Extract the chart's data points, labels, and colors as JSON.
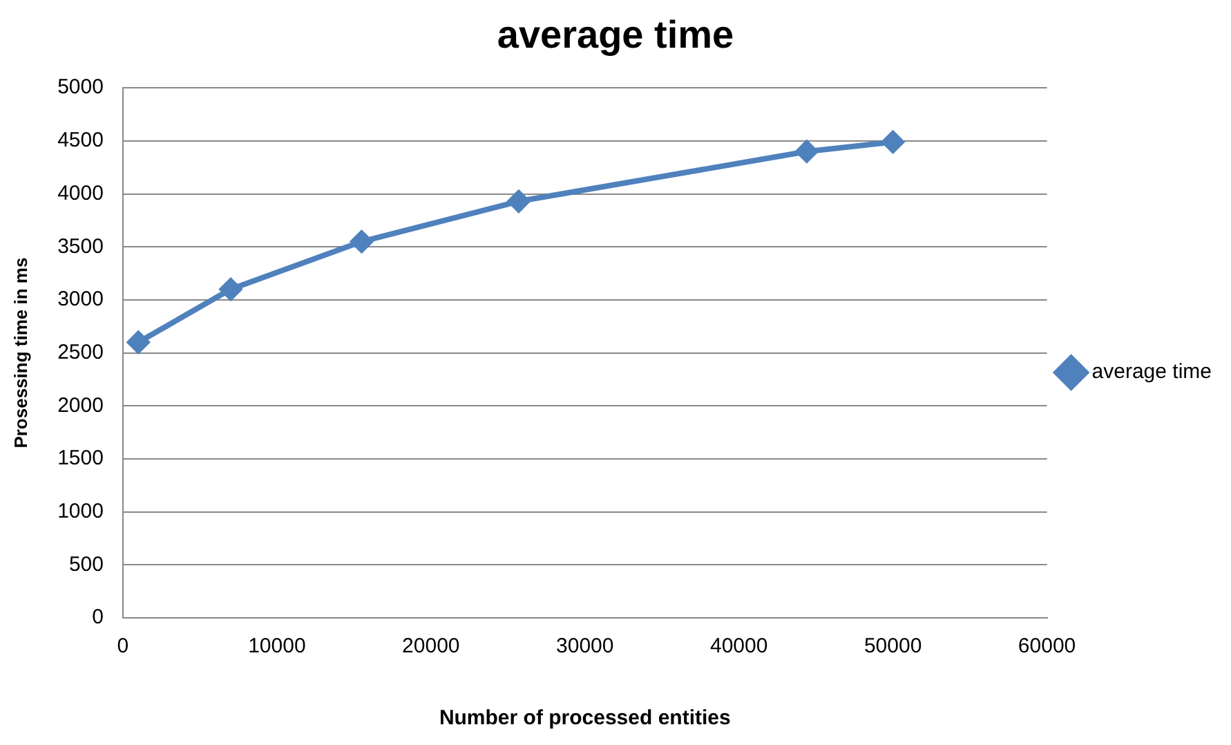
{
  "chart_data": {
    "type": "line",
    "title": "average time",
    "xlabel": "Number of processed entities",
    "ylabel": "Prosessing time in ms",
    "x": [
      1000,
      7000,
      15500,
      25700,
      44400,
      50000
    ],
    "series": [
      {
        "name": "average time",
        "color": "#4f81bd",
        "values": [
          2600,
          3100,
          3550,
          3930,
          4400,
          4490
        ]
      }
    ],
    "xlim": [
      0,
      60000
    ],
    "xticks": [
      0,
      10000,
      20000,
      30000,
      40000,
      50000,
      60000
    ],
    "ylim": [
      0,
      5000
    ],
    "yticks": [
      0,
      500,
      1000,
      1500,
      2000,
      2500,
      3000,
      3500,
      4000,
      4500,
      5000
    ],
    "grid": "y",
    "legend": "right",
    "marker": "diamond",
    "line_style": "solid"
  }
}
